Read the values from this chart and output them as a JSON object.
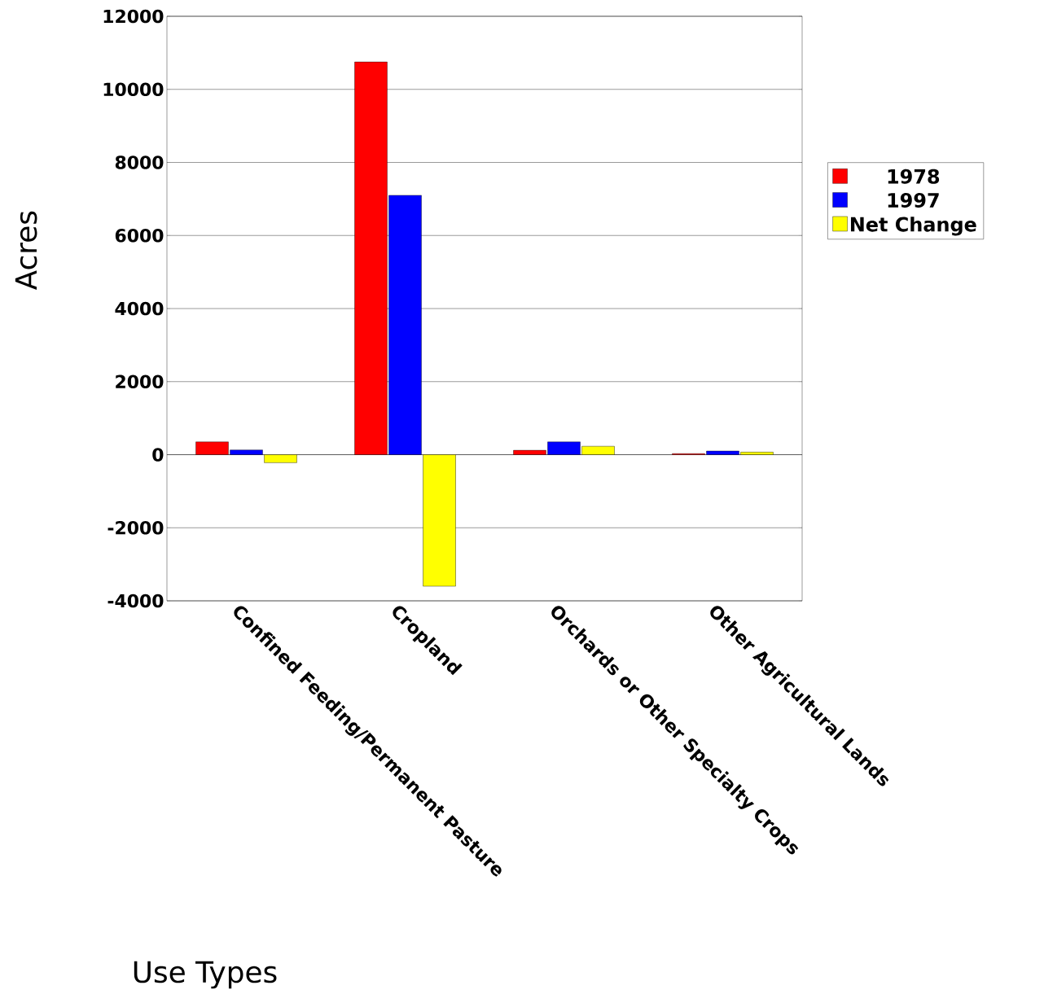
{
  "chart_data": {
    "type": "bar",
    "xlabel": "Use Types",
    "ylabel": "Acres",
    "categories": [
      "Confined Feeding/Permanent Pasture",
      "Cropland",
      "Orchards or Other Specialty Crops",
      "Other Agricultural Lands"
    ],
    "series": [
      {
        "name": "1978",
        "color": "#ff0000",
        "values": [
          350,
          10750,
          120,
          30
        ]
      },
      {
        "name": "1997",
        "color": "#0000ff",
        "values": [
          130,
          7100,
          350,
          100
        ]
      },
      {
        "name": "Net Change",
        "color": "#ffff00",
        "values": [
          -220,
          -3600,
          230,
          70
        ]
      }
    ],
    "ylim": [
      -4000,
      12000
    ],
    "yticks": [
      -4000,
      -2000,
      0,
      2000,
      4000,
      6000,
      8000,
      10000,
      12000
    ],
    "grid": "y",
    "legend": "right"
  }
}
